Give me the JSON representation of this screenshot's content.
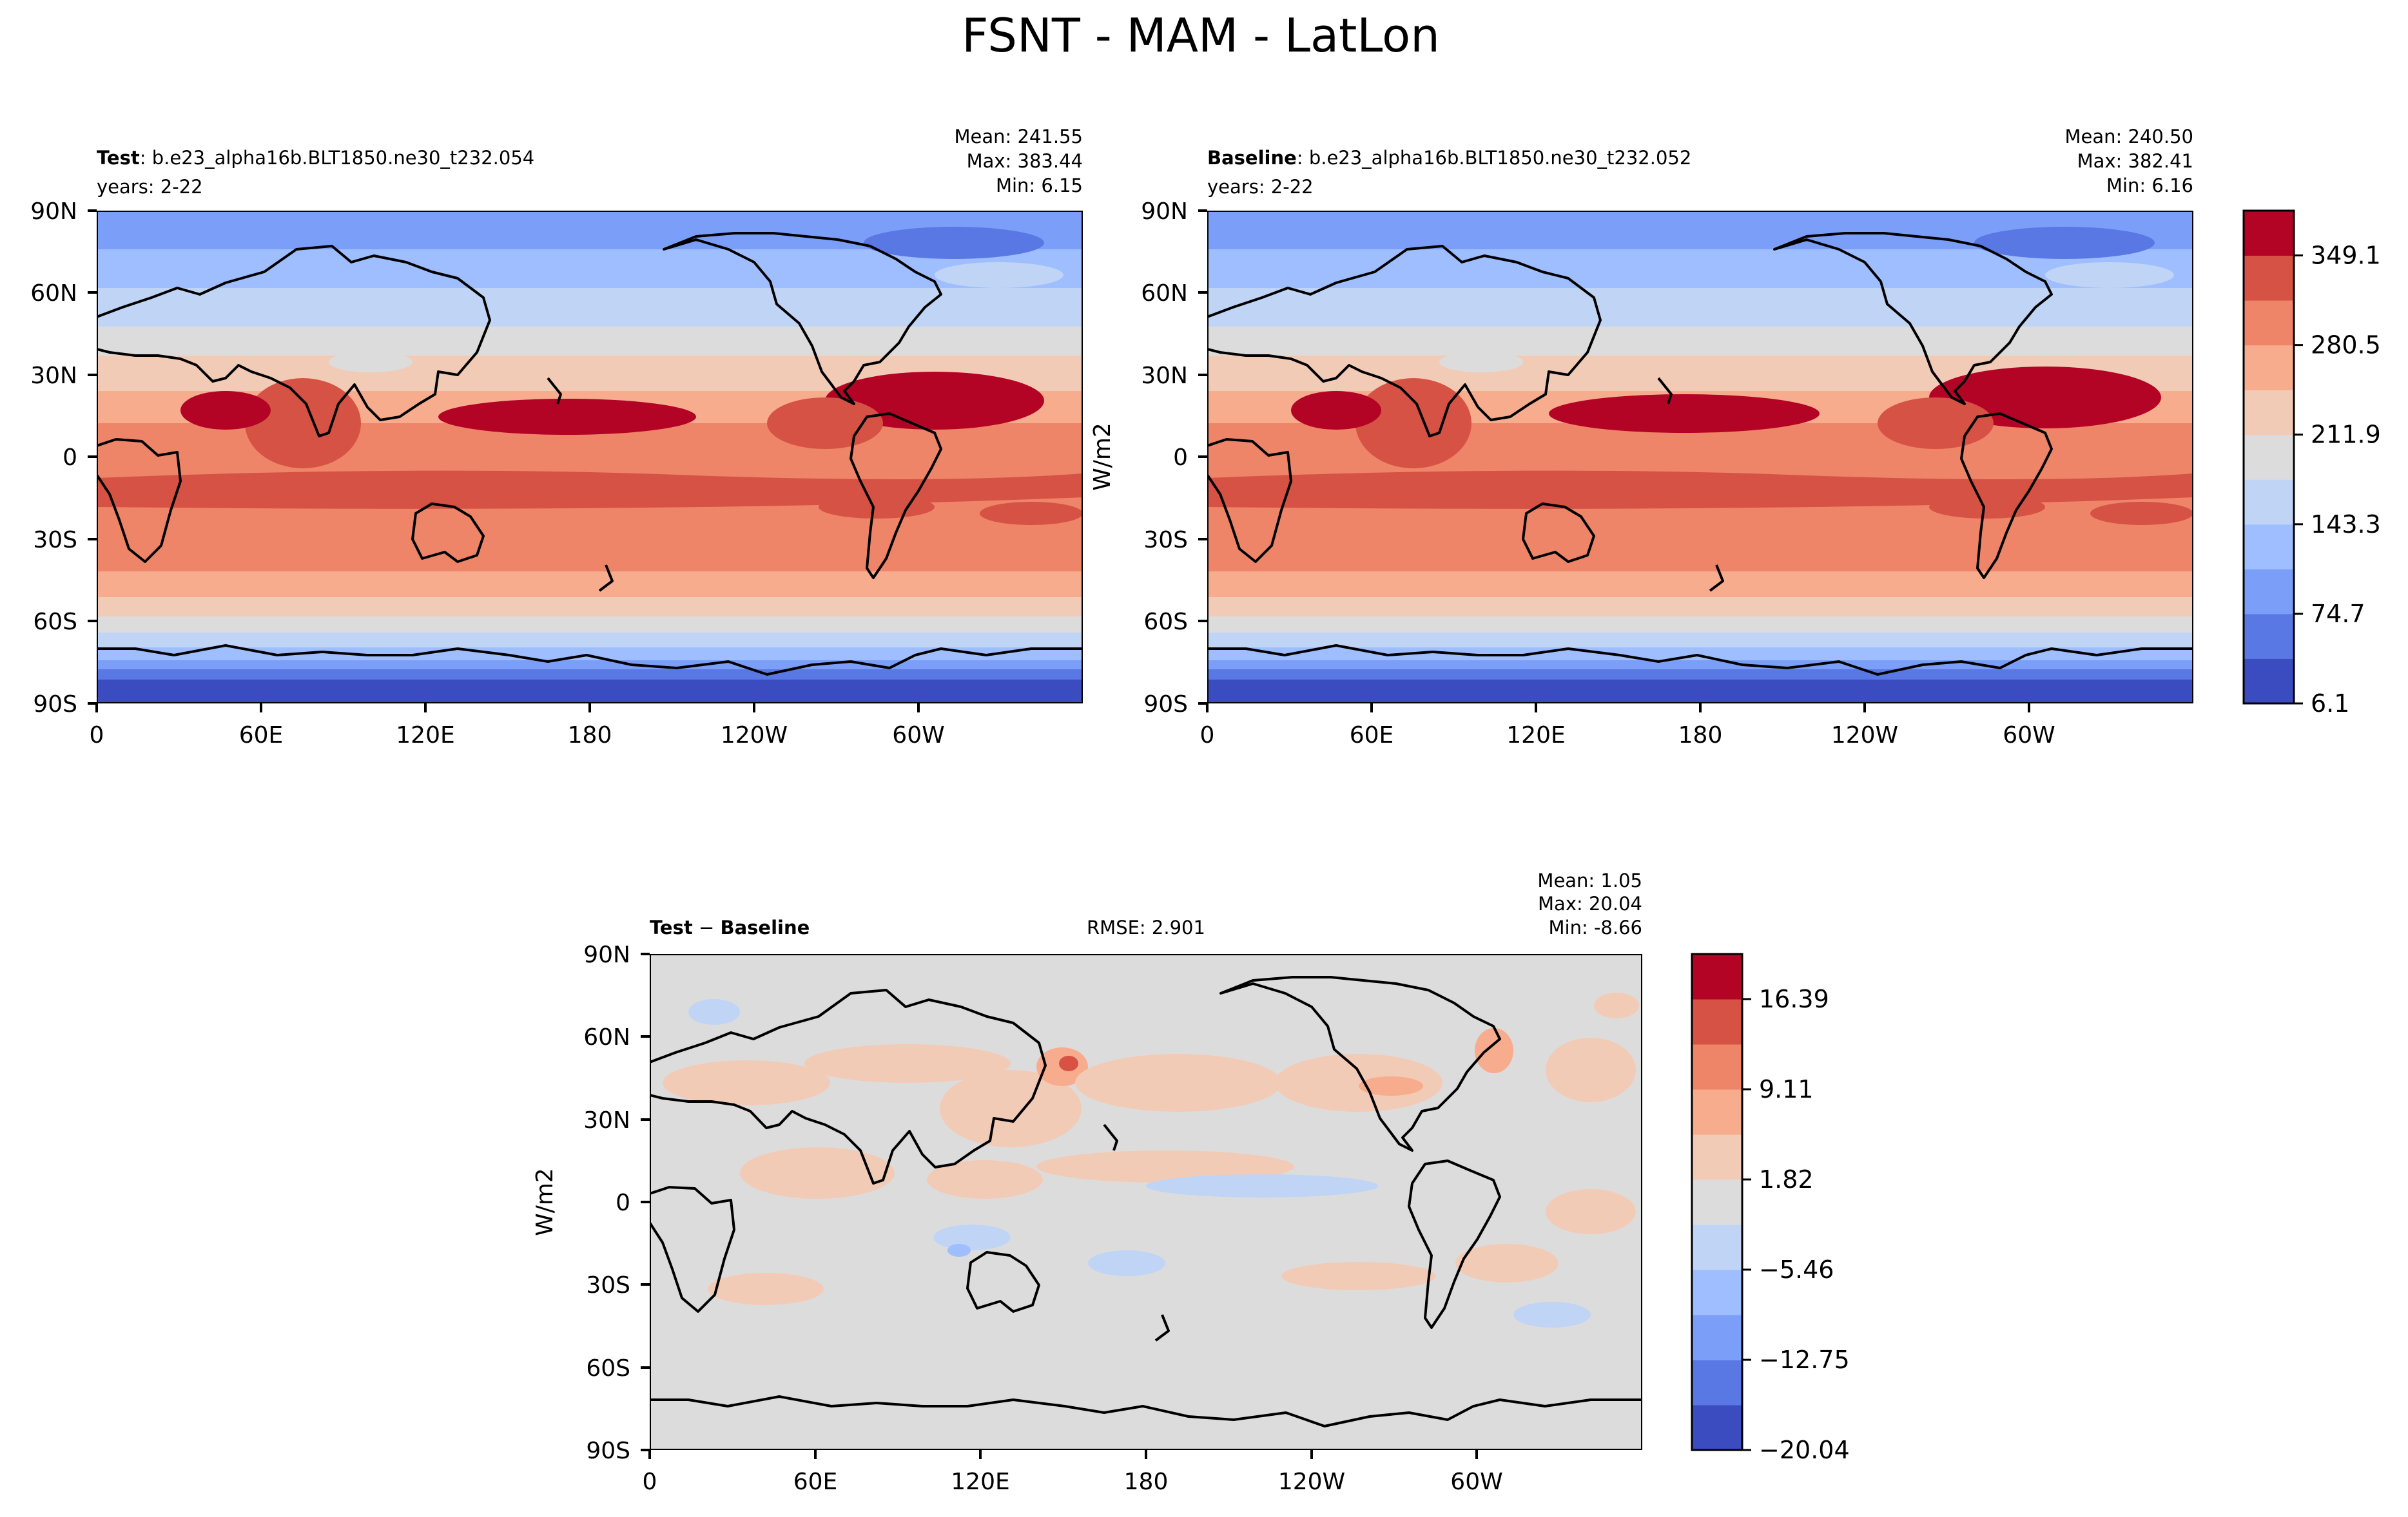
{
  "figure": {
    "title": "FSNT - MAM - LatLon"
  },
  "chart_data": [
    {
      "type": "heatmap",
      "panel": "test",
      "label": "Test",
      "case": "b.e23_alpha16b.BLT1850.ne30_t232.054",
      "years": "years: 2-22",
      "stats": {
        "mean": "Mean: 241.55",
        "max": "Max: 383.44",
        "min": "Min:  6.15"
      },
      "x_ticks": [
        "0",
        "60E",
        "120E",
        "180",
        "120W",
        "60W"
      ],
      "y_ticks": [
        "90N",
        "60N",
        "30N",
        "0",
        "30S",
        "60S",
        "90S"
      ],
      "xlim": [
        0,
        360
      ],
      "ylim": [
        -90,
        90
      ]
    },
    {
      "type": "heatmap",
      "panel": "baseline",
      "label": "Baseline",
      "case": "b.e23_alpha16b.BLT1850.ne30_t232.052",
      "years": "years: 2-22",
      "stats": {
        "mean": "Mean: 240.50",
        "max": "Max: 382.41",
        "min": "Min:  6.16"
      },
      "ylabel": "W/m2",
      "x_ticks": [
        "0",
        "60E",
        "120E",
        "180",
        "120W",
        "60W"
      ],
      "y_ticks": [
        "90N",
        "60N",
        "30N",
        "0",
        "30S",
        "60S",
        "90S"
      ],
      "xlim": [
        0,
        360
      ],
      "ylim": [
        -90,
        90
      ],
      "colorbar": {
        "ticks": [
          "349.1",
          "280.5",
          "211.9",
          "143.3",
          "74.7",
          "6.1"
        ],
        "range": [
          6.1,
          383.4
        ],
        "colors": [
          "#3b4cc0",
          "#5a78e4",
          "#7b9ff9",
          "#9ebeff",
          "#c0d4f5",
          "#dddcdc",
          "#f2cbb7",
          "#f7ac8e",
          "#ee8468",
          "#d65244",
          "#b40426"
        ]
      }
    },
    {
      "type": "heatmap",
      "panel": "difference",
      "label_a": "Test",
      "label_sep": " − ",
      "label_b": "Baseline",
      "rmse": "RMSE: 2.901",
      "stats": {
        "mean": "Mean:  1.05",
        "max": "Max: 20.04",
        "min": "Min: -8.66"
      },
      "ylabel": "W/m2",
      "x_ticks": [
        "0",
        "60E",
        "120E",
        "180",
        "120W",
        "60W"
      ],
      "y_ticks": [
        "90N",
        "60N",
        "30N",
        "0",
        "30S",
        "60S",
        "90S"
      ],
      "xlim": [
        0,
        360
      ],
      "ylim": [
        -90,
        90
      ],
      "colorbar": {
        "ticks": [
          "16.39",
          "9.11",
          "1.82",
          "−5.46",
          "−12.75",
          "−20.04"
        ],
        "range": [
          -20.04,
          20.04
        ],
        "colors": [
          "#3b4cc0",
          "#5a78e4",
          "#7b9ff9",
          "#9ebeff",
          "#c0d4f5",
          "#dddcdc",
          "#f2cbb7",
          "#f7ac8e",
          "#ee8468",
          "#d65244",
          "#b40426"
        ]
      }
    }
  ]
}
